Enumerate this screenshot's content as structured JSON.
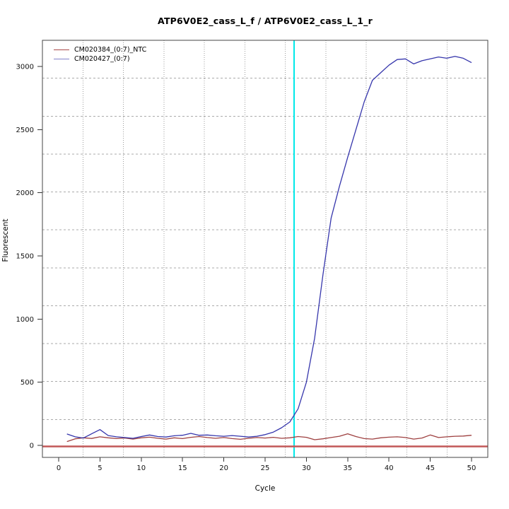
{
  "figure": {
    "title": "ATP6V0E2_cass_L_f / ATP6V0E2_cass_L_1_r",
    "x_axis_label": "Cycle",
    "y_axis_label": "Fluorescent"
  },
  "axes": {
    "x_ticks": [
      0,
      5,
      10,
      15,
      20,
      25,
      30,
      35,
      40,
      45,
      50
    ],
    "y_ticks": [
      0,
      500,
      1000,
      1500,
      2000,
      2500,
      3000
    ]
  },
  "legend": {
    "items": [
      {
        "label": "CM020384_(0:7)_NTC",
        "color": "#A84A4A"
      },
      {
        "label": "CM020427_(0:7)",
        "color": "#8282CC"
      }
    ]
  },
  "colors": {
    "box_border": "#444444",
    "grid": "#9e9e9e",
    "grid_dashed": "#ababab",
    "tick": "#333333",
    "tick_label": "#111111",
    "threshold_line": "#C25858",
    "marker_line": "#00E8E8",
    "series_ntc": "#9E4040",
    "series_sample": "#3636AC"
  },
  "chart_data": {
    "type": "line",
    "title": "ATP6V0E2_cass_L_f / ATP6V0E2_cass_L_1_r",
    "xlabel": "Cycle",
    "ylabel": "Fluorescent",
    "xlim": [
      0,
      50
    ],
    "ylim": [
      0,
      3000
    ],
    "grid": "on",
    "legend_position": "top-left",
    "x": [
      1,
      2,
      3,
      4,
      5,
      6,
      7,
      8,
      9,
      10,
      11,
      12,
      13,
      14,
      15,
      16,
      17,
      18,
      19,
      20,
      21,
      22,
      23,
      24,
      25,
      26,
      27,
      28,
      29,
      30,
      31,
      32,
      33,
      34,
      35,
      36,
      37,
      38,
      39,
      40,
      41,
      42,
      43,
      44,
      45,
      46,
      47,
      48,
      49,
      50
    ],
    "series": [
      {
        "name": "CM020384_(0:7)_NTC",
        "color": "#9E4040",
        "values": [
          30,
          52,
          60,
          55,
          68,
          60,
          54,
          58,
          50,
          60,
          65,
          56,
          50,
          60,
          54,
          64,
          70,
          62,
          56,
          62,
          54,
          48,
          56,
          62,
          58,
          64,
          56,
          60,
          70,
          64,
          45,
          52,
          62,
          72,
          92,
          70,
          54,
          50,
          60,
          65,
          68,
          62,
          50,
          58,
          82,
          62,
          68,
          72,
          74,
          80
        ]
      },
      {
        "name": "CM020427_(0:7)",
        "color": "#3636AC",
        "values": [
          90,
          68,
          58,
          92,
          125,
          78,
          68,
          62,
          56,
          70,
          82,
          70,
          66,
          76,
          80,
          95,
          80,
          82,
          76,
          72,
          78,
          72,
          66,
          72,
          85,
          105,
          140,
          185,
          290,
          500,
          850,
          1350,
          1800,
          2050,
          2280,
          2500,
          2720,
          2890,
          2950,
          3010,
          3055,
          3060,
          3020,
          3045,
          3060,
          3075,
          3065,
          3080,
          3065,
          3030
        ]
      }
    ],
    "threshold_line": {
      "y": 0,
      "color": "#C25858"
    },
    "marker_line": {
      "x": 28.5,
      "color": "#00E8E8"
    }
  }
}
